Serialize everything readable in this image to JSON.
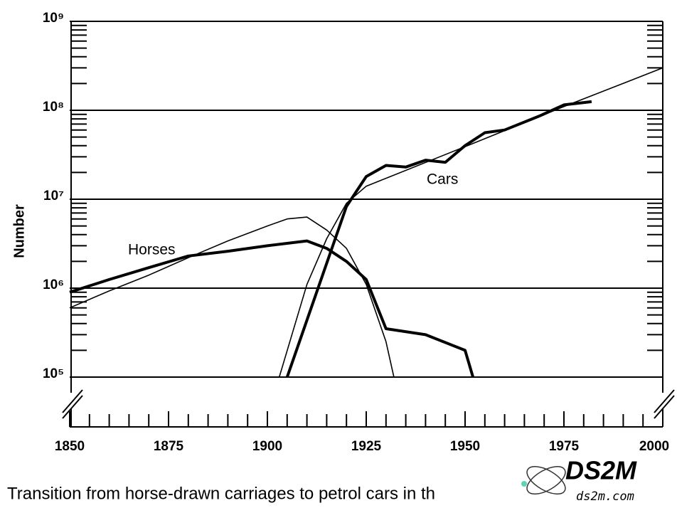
{
  "chart_data": {
    "type": "line",
    "y_label": "Number",
    "xlim": [
      1850,
      2000
    ],
    "xticks": [
      1850,
      1875,
      1900,
      1925,
      1950,
      1975,
      2000
    ],
    "ylim": [
      100000,
      1000000000
    ],
    "yticks": [
      {
        "value": 100000,
        "label": "10⁵"
      },
      {
        "value": 1000000,
        "label": "10⁶"
      },
      {
        "value": 10000000,
        "label": "10⁷"
      },
      {
        "value": 100000000,
        "label": "10⁸"
      },
      {
        "value": 1000000000,
        "label": "10⁹"
      }
    ],
    "log_y": true,
    "grid": true,
    "series": [
      {
        "name": "Horses",
        "color": "#000000",
        "x": [
          1850,
          1860,
          1870,
          1880,
          1890,
          1900,
          1910,
          1915,
          1920,
          1925,
          1930,
          1940,
          1950,
          1952
        ],
        "values": [
          900000,
          1250000,
          1700000,
          2300000,
          2600000,
          3000000,
          3400000,
          2800000,
          2000000,
          1250000,
          350000,
          300000,
          200000,
          100000
        ]
      },
      {
        "color": "#000000",
        "x": [
          1850,
          1860,
          1870,
          1880,
          1890,
          1900,
          1905,
          1910,
          1915,
          1920,
          1925,
          1930,
          1932
        ],
        "values": [
          600000,
          930000,
          1400000,
          2200000,
          3400000,
          5000000,
          6000000,
          6300000,
          4500000,
          2800000,
          1100000,
          250000,
          100000
        ]
      },
      {
        "name": "Cars",
        "color": "#000000",
        "x": [
          1905,
          1920,
          1925,
          1930,
          1935,
          1940,
          1945,
          1950,
          1955,
          1960,
          1969,
          1975,
          1982
        ],
        "values": [
          100000,
          8300000,
          18000000,
          24000000,
          23000000,
          27500000,
          26000000,
          40000000,
          56000000,
          60000000,
          87000000,
          115000000,
          125000000
        ]
      },
      {
        "color": "#000000",
        "x": [
          1903,
          1910,
          1915,
          1920,
          1925,
          1950,
          1975,
          2000
        ],
        "values": [
          100000,
          1100000,
          3600000,
          9000000,
          14000000,
          39000000,
          110000000,
          300000000
        ]
      }
    ]
  },
  "caption": "Transition from horse-drawn carriages to petrol cars in th",
  "watermark": {
    "logo": "DS2M",
    "url": "ds2m.com"
  }
}
